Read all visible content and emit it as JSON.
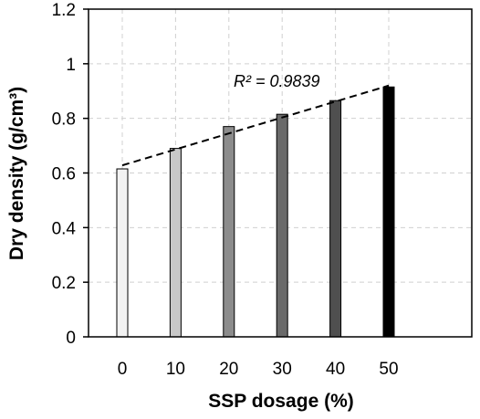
{
  "chart_data": {
    "type": "bar",
    "categories": [
      "0",
      "10",
      "20",
      "30",
      "40",
      "50"
    ],
    "values": [
      0.615,
      0.69,
      0.77,
      0.815,
      0.865,
      0.915
    ],
    "bar_colors": [
      "#f2f2f2",
      "#c8c8c8",
      "#8c8c8c",
      "#6a6a6a",
      "#4f4f4f",
      "#000000"
    ],
    "xlabel": "SSP dosage (%)",
    "ylabel": "Dry density (g/cm³)",
    "ylim": [
      0,
      1.2
    ],
    "yticks": [
      "0",
      "0.2",
      "0.4",
      "0.6",
      "0.8",
      "1",
      "1.2"
    ],
    "grid": true,
    "trendline": {
      "type": "linear",
      "style": "dashed",
      "start": [
        0,
        0.628
      ],
      "end": [
        50,
        0.92
      ],
      "annotation": "R² = 0.9839"
    }
  }
}
